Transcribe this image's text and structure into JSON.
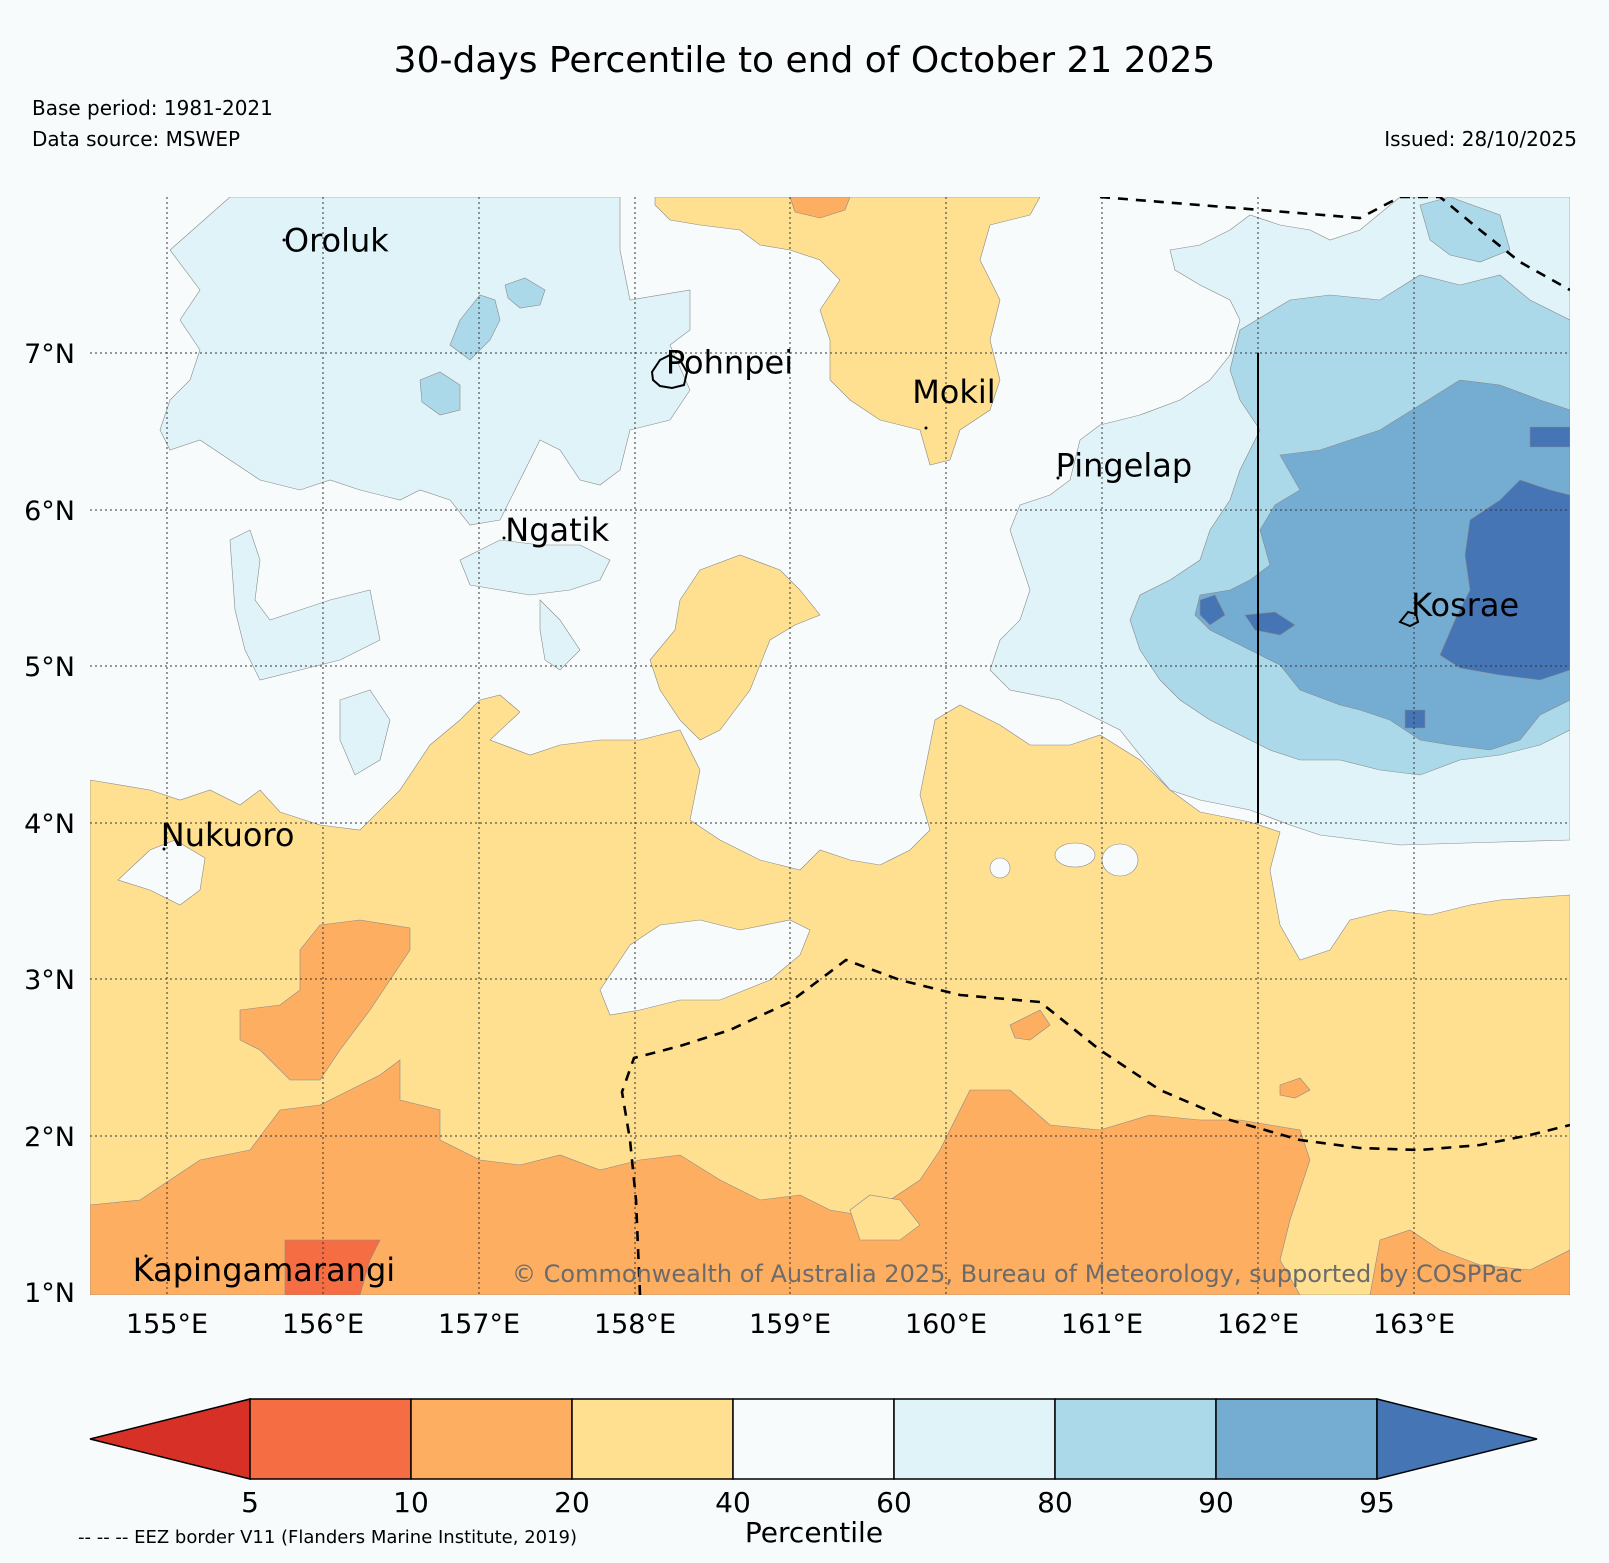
{
  "title": "30-days Percentile to end of October 21 2025",
  "base_period": "Base period: 1981-2021",
  "data_source": "Data source: MSWEP",
  "issued": "Issued: 28/10/2025",
  "copyright": "© Commonwealth of Australia 2025, Bureau of Meteorology, supported by COSPPac",
  "eez_note": "-- -- -- EEZ border V11 (Flanders Marine Institute, 2019)",
  "colorbar": {
    "label": "Percentile",
    "ticks": [
      "5",
      "10",
      "20",
      "40",
      "60",
      "80",
      "90",
      "95"
    ],
    "bins": [
      {
        "range": "<5",
        "color": "#d73027"
      },
      {
        "range": "5-10",
        "color": "#f46d43"
      },
      {
        "range": "10-20",
        "color": "#fdae61"
      },
      {
        "range": "20-40",
        "color": "#fee090"
      },
      {
        "range": "40-60",
        "color": "#f7fbfc"
      },
      {
        "range": "60-80",
        "color": "#e0f3f8"
      },
      {
        "range": "80-90",
        "color": "#abd9e9"
      },
      {
        "range": "90-95",
        "color": "#74add1"
      },
      {
        "range": ">95",
        "color": "#4575b4"
      }
    ]
  },
  "axes": {
    "lon_labels": [
      "155°E",
      "156°E",
      "157°E",
      "158°E",
      "159°E",
      "160°E",
      "161°E",
      "162°E",
      "163°E"
    ],
    "lat_labels": [
      "7°N",
      "6°N",
      "5°N",
      "4°N",
      "3°N",
      "2°N",
      "1°N"
    ]
  },
  "places": [
    {
      "name": "Oroluk",
      "lon": 155.75,
      "lat": 7.65
    },
    {
      "name": "Pohnpei",
      "lon": 158.2,
      "lat": 6.87
    },
    {
      "name": "Mokil",
      "lon": 159.78,
      "lat": 6.68
    },
    {
      "name": "Pingelap",
      "lon": 160.7,
      "lat": 6.21
    },
    {
      "name": "Ngatik",
      "lon": 157.17,
      "lat": 5.8
    },
    {
      "name": "Kosrae",
      "lon": 162.98,
      "lat": 5.32
    },
    {
      "name": "Nukuoro",
      "lon": 154.96,
      "lat": 3.85
    },
    {
      "name": "Kapingamarangi",
      "lon": 154.78,
      "lat": 1.07
    }
  ]
}
